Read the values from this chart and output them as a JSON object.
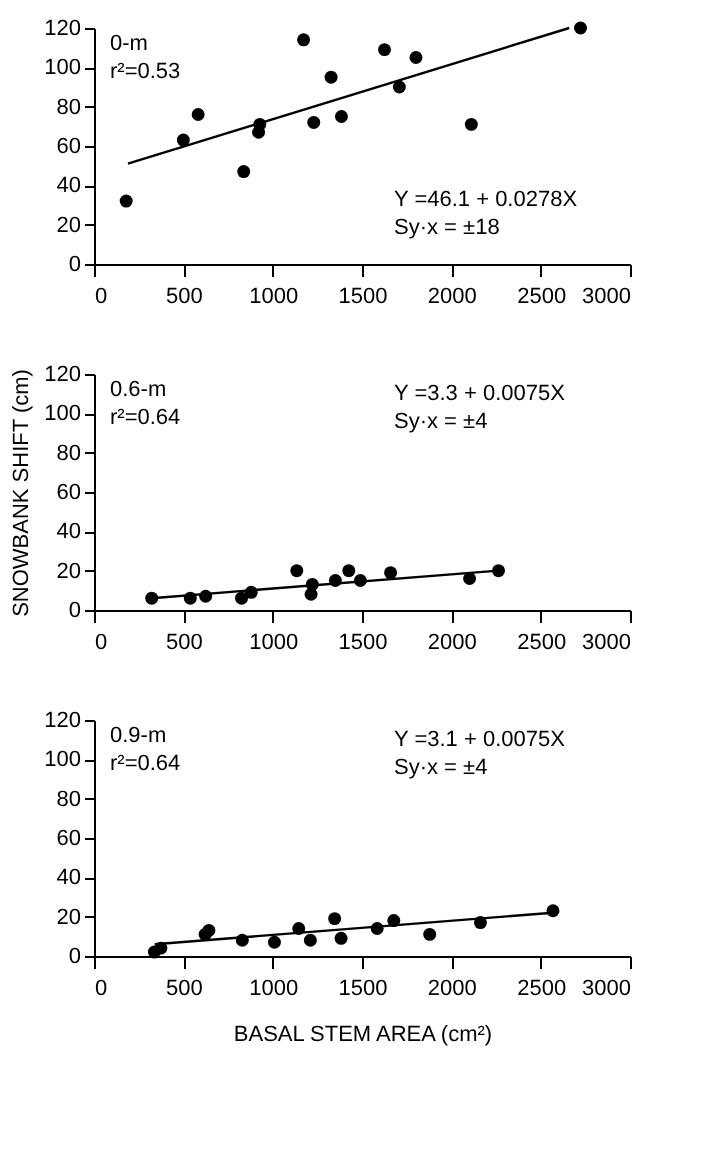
{
  "chart_data": [
    {
      "type": "scatter",
      "xlim": [
        0,
        3000
      ],
      "xticks": [
        0,
        500,
        1000,
        1500,
        2000,
        2500,
        3000
      ],
      "ylim": [
        0,
        120
      ],
      "yticks": [
        0,
        20,
        40,
        60,
        80,
        100,
        120
      ],
      "grid": false,
      "annotations": [
        "0-m",
        "r²=0.53",
        "Y =46.1 + 0.0278X",
        "Sy·x =  ±18"
      ],
      "series": [
        {
          "type": "scatter",
          "marker": "circle",
          "color": "#000000",
          "x": [
            180,
            500,
            583,
            838,
            928,
            921,
            1173,
            1230,
            1327,
            1385,
            1626,
            1709,
            1802,
            2112,
            2723
          ],
          "values": [
            32,
            63,
            76,
            47,
            71,
            67,
            114,
            72,
            95,
            75,
            109,
            90,
            105,
            71,
            120
          ]
        },
        {
          "type": "line",
          "marker": "none",
          "color": "#000000",
          "line_style": "solid",
          "x": [
            190,
            2660
          ],
          "values": [
            51,
            120
          ]
        }
      ]
    },
    {
      "type": "scatter",
      "xlim": [
        0,
        3000
      ],
      "xticks": [
        0,
        500,
        1000,
        1500,
        2000,
        2500,
        3000
      ],
      "ylim": [
        0,
        120
      ],
      "yticks": [
        0,
        20,
        40,
        60,
        80,
        100,
        120
      ],
      "grid": false,
      "ylabel": "SNOWBANK SHIFT (cm)",
      "annotations": [
        "0.6-m",
        "r²=0.64",
        "Y =3.3 + 0.0075X",
        "Sy·x =  ±4"
      ],
      "series": [
        {
          "type": "scatter",
          "marker": "circle",
          "color": "#000000",
          "x": [
            323,
            539,
            625,
            826,
            880,
            1135,
            1215,
            1222,
            1351,
            1426,
            1491,
            1660,
            2102,
            2264
          ],
          "values": [
            6,
            6,
            7,
            6,
            9,
            20,
            8,
            13,
            15,
            20,
            15,
            19,
            16,
            20
          ]
        },
        {
          "type": "line",
          "marker": "none",
          "color": "#000000",
          "line_style": "solid",
          "x": [
            323,
            2264
          ],
          "values": [
            6,
            20
          ]
        }
      ]
    },
    {
      "type": "scatter",
      "xlim": [
        0,
        3000
      ],
      "xticks": [
        0,
        500,
        1000,
        1500,
        2000,
        2500,
        3000
      ],
      "ylim": [
        0,
        120
      ],
      "yticks": [
        0,
        20,
        40,
        60,
        80,
        100,
        120
      ],
      "grid": false,
      "xlabel": "BASAL STEM AREA (cm²)",
      "annotations": [
        "0.9-m",
        "r²=0.64",
        "Y =3.1 + 0.0075X",
        "Sy·x =  ±4"
      ],
      "series": [
        {
          "type": "scatter",
          "marker": "circle",
          "color": "#000000",
          "x": [
            338,
            374,
            622,
            643,
            830,
            1010,
            1146,
            1211,
            1347,
            1383,
            1585,
            1678,
            1879,
            2163,
            2569
          ],
          "values": [
            2,
            4,
            11,
            13,
            8,
            7,
            14,
            8,
            19,
            9,
            14,
            18,
            11,
            17,
            23
          ]
        },
        {
          "type": "line",
          "marker": "none",
          "color": "#000000",
          "line_style": "solid",
          "x": [
            340,
            2569
          ],
          "values": [
            6,
            22
          ]
        }
      ]
    }
  ]
}
